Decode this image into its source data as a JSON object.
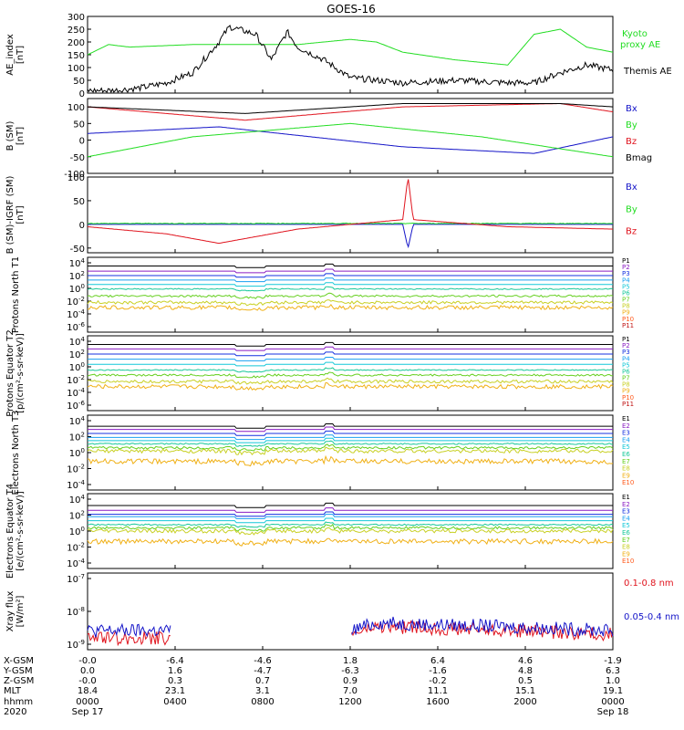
{
  "title": "GOES-16",
  "colors": {
    "black": "#000000",
    "red": "#e0141e",
    "green": "#22dd22",
    "blue": "#1414c8",
    "ch": [
      "#000000",
      "#8a1cc2",
      "#1430e0",
      "#1aa0f0",
      "#14c8d8",
      "#18c89a",
      "#66d020",
      "#c8d024",
      "#f0b016",
      "#ff5a1c",
      "#c01414",
      "#8a1010"
    ]
  },
  "chart_data": [
    {
      "type": "line",
      "ylabel": "AE_index [nT]",
      "ylim": [
        0,
        300
      ],
      "yticks": [
        "0",
        "50",
        "100",
        "150",
        "200",
        "250",
        "300"
      ],
      "series": [
        {
          "name": "Kyoto proxy AE",
          "color": "#22dd22",
          "x": [
            0,
            0.04,
            0.08,
            0.2,
            0.4,
            0.5,
            0.55,
            0.6,
            0.7,
            0.8,
            0.85,
            0.9,
            0.95,
            1.0
          ],
          "y": [
            150,
            190,
            180,
            190,
            190,
            210,
            200,
            160,
            130,
            110,
            230,
            250,
            180,
            160
          ]
        },
        {
          "name": "Themis AE",
          "color": "#000000",
          "x": [
            0,
            0.05,
            0.1,
            0.15,
            0.2,
            0.25,
            0.27,
            0.32,
            0.35,
            0.38,
            0.4,
            0.45,
            0.5,
            0.6,
            0.7,
            0.8,
            0.85,
            0.9,
            0.95,
            1.0
          ],
          "y": [
            10,
            10,
            20,
            40,
            80,
            200,
            260,
            230,
            130,
            240,
            180,
            130,
            60,
            40,
            50,
            40,
            40,
            80,
            110,
            90
          ]
        }
      ]
    },
    {
      "type": "line",
      "ylabel": "B (SM) [nT]",
      "ylim": [
        -100,
        125
      ],
      "yticks": [
        "-100",
        "-50",
        "0",
        "50",
        "100"
      ],
      "legend": [
        "Bx",
        "By",
        "Bz",
        "Bmag"
      ],
      "series": [
        {
          "name": "Bx",
          "color": "#1414c8",
          "x": [
            0,
            0.25,
            0.6,
            0.85,
            1.0
          ],
          "y": [
            20,
            40,
            -20,
            -40,
            10
          ]
        },
        {
          "name": "By",
          "color": "#22dd22",
          "x": [
            0,
            0.2,
            0.5,
            0.75,
            1.0
          ],
          "y": [
            -50,
            10,
            50,
            10,
            -50
          ]
        },
        {
          "name": "Bz",
          "color": "#e0141e",
          "x": [
            0,
            0.3,
            0.6,
            0.9,
            1.0
          ],
          "y": [
            100,
            60,
            100,
            110,
            85
          ]
        },
        {
          "name": "Bmag",
          "color": "#000000",
          "x": [
            0,
            0.3,
            0.6,
            0.9,
            1.0
          ],
          "y": [
            100,
            80,
            110,
            110,
            100
          ]
        }
      ]
    },
    {
      "type": "line",
      "ylabel": "B (SM)-IGRF (SM) [nT]",
      "ylim": [
        -60,
        100
      ],
      "yticks": [
        "-50",
        "0",
        "50",
        "100"
      ],
      "legend": [
        "Bx",
        "By",
        "Bz"
      ],
      "series": [
        {
          "name": "Bx",
          "color": "#1414c8",
          "x": [
            0,
            0.5,
            0.6,
            0.61,
            0.62,
            1.0
          ],
          "y": [
            0,
            0,
            0,
            -50,
            0,
            0
          ]
        },
        {
          "name": "By",
          "color": "#22dd22",
          "x": [
            0,
            0.5,
            1.0
          ],
          "y": [
            2,
            2,
            2
          ]
        },
        {
          "name": "Bz",
          "color": "#e0141e",
          "x": [
            0,
            0.15,
            0.25,
            0.4,
            0.6,
            0.61,
            0.62,
            0.8,
            1.0
          ],
          "y": [
            -5,
            -20,
            -40,
            -10,
            10,
            100,
            10,
            -5,
            -10
          ]
        }
      ]
    },
    {
      "type": "line",
      "ylabel": "Protons North T1",
      "ylog": true,
      "yticks": [
        "10^4",
        "10^2",
        "10^0",
        "10^-2",
        "10^-4",
        "10^-6"
      ],
      "legend": [
        "P1",
        "P2",
        "P3",
        "P4",
        "P5",
        "P6",
        "P7",
        "P8",
        "P9",
        "P10",
        "P11"
      ],
      "levels": [
        3.5,
        2.7,
        2.0,
        1.3,
        0.6,
        -0.1,
        -1.2,
        -2.2,
        -3.0
      ]
    },
    {
      "type": "line",
      "ylabel": "Protons Equator T2 [p/(cm²-s-sr-keV)]",
      "ylog": true,
      "yticks": [
        "10^4",
        "10^2",
        "10^0",
        "10^-2",
        "10^-4",
        "10^-6"
      ],
      "legend": [
        "P1",
        "P2",
        "P3",
        "P4",
        "P5",
        "P6",
        "P7",
        "P8",
        "P9",
        "P10",
        "P11"
      ],
      "levels": [
        3.5,
        2.8,
        2.0,
        1.2,
        0.4,
        -0.5,
        -1.3,
        -2.3,
        -3.1
      ]
    },
    {
      "type": "line",
      "ylabel": "Electrons North T3",
      "ylog": true,
      "yticks": [
        "10^4",
        "10^2",
        "10^0",
        "10^-2",
        "10^-4"
      ],
      "legend": [
        "E1",
        "E2",
        "E3",
        "E4",
        "E5",
        "E6",
        "E7",
        "E8",
        "E9",
        "E10"
      ],
      "levels": [
        3.3,
        2.9,
        2.4,
        1.9,
        1.5,
        1.1,
        0.6,
        0.2,
        -1.1
      ]
    },
    {
      "type": "line",
      "ylabel": "Electrons Equator T4 [e/(cm²-s-sr-keV)]",
      "ylog": true,
      "yticks": [
        "10^4",
        "10^2",
        "10^0",
        "10^-2",
        "10^-4"
      ],
      "legend": [
        "E1",
        "E2",
        "E3",
        "E4",
        "E5",
        "E6",
        "E7",
        "E8",
        "E9",
        "E10"
      ],
      "levels": [
        3.2,
        2.6,
        2.1,
        1.8,
        1.3,
        0.8,
        0.4,
        0.0,
        -1.3
      ]
    },
    {
      "type": "line",
      "ylabel": "Xray flux [W/m²]",
      "ylog": true,
      "yticks": [
        "10^-7",
        "10^-8",
        "10^-9"
      ],
      "legend": [
        "0.1-0.8 nm",
        "0.05-0.4 nm"
      ],
      "series": [
        {
          "name": "0.1-0.8 nm",
          "color": "#e0141e",
          "x": [
            0,
            0.16,
            0.21,
            0.5,
            0.55,
            0.8,
            1.0
          ],
          "y": [
            -8.7,
            -8.7,
            null,
            -8.6,
            -8.4,
            -8.5,
            -8.6
          ]
        },
        {
          "name": "0.05-0.4 nm",
          "color": "#1414c8",
          "x": [
            0,
            0.16,
            0.21,
            0.5,
            0.55,
            0.8,
            1.0
          ],
          "y": [
            -8.5,
            -8.5,
            null,
            -8.5,
            -8.3,
            -8.4,
            -8.5
          ]
        }
      ]
    }
  ],
  "x_axis": {
    "row_labels": [
      "X-GSM",
      "Y-GSM",
      "Z-GSM",
      "MLT",
      "hhmm",
      "2020"
    ],
    "columns": [
      [
        "-0.0",
        "0.0",
        "-0.0",
        "18.4",
        "0000",
        "Sep 17"
      ],
      [
        "-6.4",
        "1.6",
        "0.3",
        "23.1",
        "0400",
        ""
      ],
      [
        "-4.6",
        "-4.7",
        "0.7",
        "3.1",
        "0800",
        ""
      ],
      [
        "1.8",
        "-6.3",
        "0.9",
        "7.0",
        "1200",
        ""
      ],
      [
        "6.4",
        "-1.6",
        "-0.2",
        "11.1",
        "1600",
        ""
      ],
      [
        "4.6",
        "4.8",
        "0.5",
        "15.1",
        "2000",
        ""
      ],
      [
        "-1.9",
        "6.3",
        "1.0",
        "19.1",
        "0000",
        "Sep 18"
      ]
    ]
  }
}
